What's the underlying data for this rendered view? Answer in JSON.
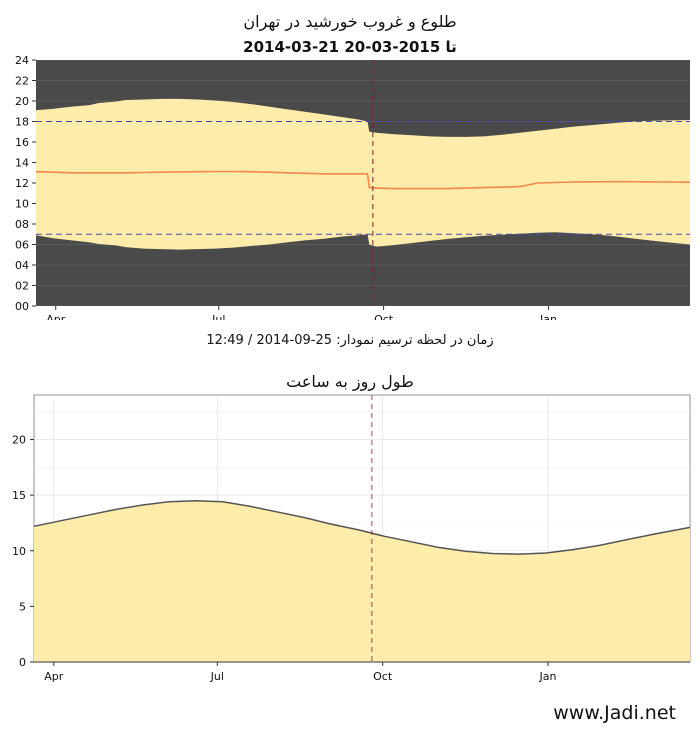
{
  "header": {
    "title": "طلوع و غروب خورشید در تهران",
    "subtitle": "2014-03-21 تا 2015-03-20"
  },
  "caption": "زمان در لحظه ترسیم نمودار: 25-09-2014 / 12:49",
  "footer": {
    "site": "www.Jadi.net"
  },
  "colors": {
    "night": "#4a4a4a",
    "day": "#feecaa",
    "noon_line": "#f4874b",
    "dashed_ref": "#4b4ba8",
    "now_line": "#8a1c2a",
    "length_line": "#555555",
    "length_fill": "#feecaa"
  },
  "chart_data": [
    {
      "type": "area",
      "title": "طلوع و غروب خورشید در تهران",
      "subtitle": "2014-03-21 تا 2015-03-20",
      "x_tick_labels": [
        "Apr",
        "Jul",
        "Oct",
        "Jan"
      ],
      "x_ticks_day": [
        11,
        102,
        194,
        286
      ],
      "xlim_day": [
        0,
        365
      ],
      "y_tick_labels": [
        "00",
        "02",
        "04",
        "06",
        "08",
        "10",
        "12",
        "14",
        "16",
        "18",
        "20",
        "22",
        "24"
      ],
      "ylim": [
        0,
        24
      ],
      "grid": true,
      "reference_lines_hours": [
        7,
        18
      ],
      "now_marker_day": 188,
      "x_day": [
        0,
        10,
        20,
        30,
        35,
        45,
        50,
        60,
        70,
        80,
        90,
        100,
        110,
        120,
        130,
        140,
        150,
        160,
        170,
        180,
        185,
        186,
        190,
        200,
        210,
        220,
        230,
        240,
        250,
        260,
        270,
        280,
        290,
        300,
        310,
        320,
        330,
        340,
        350,
        365
      ],
      "series": [
        {
          "name": "sunrise",
          "values": [
            6.9,
            6.6,
            6.4,
            6.2,
            6.05,
            5.9,
            5.75,
            5.6,
            5.55,
            5.5,
            5.55,
            5.6,
            5.7,
            5.85,
            6.0,
            6.2,
            6.4,
            6.55,
            6.75,
            6.9,
            7.0,
            6.0,
            5.8,
            5.95,
            6.15,
            6.35,
            6.55,
            6.7,
            6.85,
            6.95,
            7.05,
            7.15,
            7.2,
            7.1,
            7.0,
            6.85,
            6.65,
            6.45,
            6.25,
            6.0
          ]
        },
        {
          "name": "sunset",
          "values": [
            19.1,
            19.25,
            19.45,
            19.6,
            19.8,
            19.95,
            20.1,
            20.15,
            20.2,
            20.2,
            20.15,
            20.05,
            19.9,
            19.7,
            19.45,
            19.2,
            18.95,
            18.7,
            18.45,
            18.2,
            18.0,
            17.0,
            16.9,
            16.75,
            16.65,
            16.55,
            16.5,
            16.5,
            16.55,
            16.7,
            16.9,
            17.1,
            17.3,
            17.5,
            17.65,
            17.8,
            17.95,
            18.05,
            18.1,
            18.15
          ]
        },
        {
          "name": "solar_noon",
          "values": [
            13.1,
            13.05,
            13.0,
            13.0,
            13.0,
            13.0,
            13.0,
            13.02,
            13.05,
            13.08,
            13.1,
            13.12,
            13.12,
            13.1,
            13.05,
            13.0,
            12.95,
            12.9,
            12.9,
            12.9,
            12.9,
            11.55,
            11.5,
            11.45,
            11.45,
            11.45,
            11.45,
            11.5,
            11.55,
            11.6,
            11.65,
            12.0,
            12.05,
            12.1,
            12.12,
            12.13,
            12.13,
            12.12,
            12.1,
            12.08
          ]
        }
      ]
    },
    {
      "type": "area",
      "title": "طول روز به ساعت",
      "x_tick_labels": [
        "Apr",
        "Jul",
        "Oct",
        "Jan"
      ],
      "x_ticks_day": [
        11,
        102,
        194,
        286
      ],
      "xlim_day": [
        0,
        365
      ],
      "y_tick_labels": [
        "0",
        "5",
        "10",
        "15",
        "20"
      ],
      "ylim": [
        0,
        24
      ],
      "grid": true,
      "now_marker_day": 188,
      "x_day": [
        0,
        15,
        30,
        45,
        60,
        75,
        90,
        105,
        120,
        135,
        150,
        165,
        180,
        195,
        210,
        225,
        240,
        255,
        270,
        285,
        300,
        315,
        330,
        345,
        365
      ],
      "series": [
        {
          "name": "day_length",
          "values": [
            12.2,
            12.7,
            13.2,
            13.7,
            14.1,
            14.4,
            14.5,
            14.4,
            14.0,
            13.5,
            13.0,
            12.4,
            11.9,
            11.3,
            10.8,
            10.3,
            9.95,
            9.75,
            9.7,
            9.8,
            10.1,
            10.5,
            11.0,
            11.5,
            12.1
          ]
        }
      ]
    }
  ]
}
